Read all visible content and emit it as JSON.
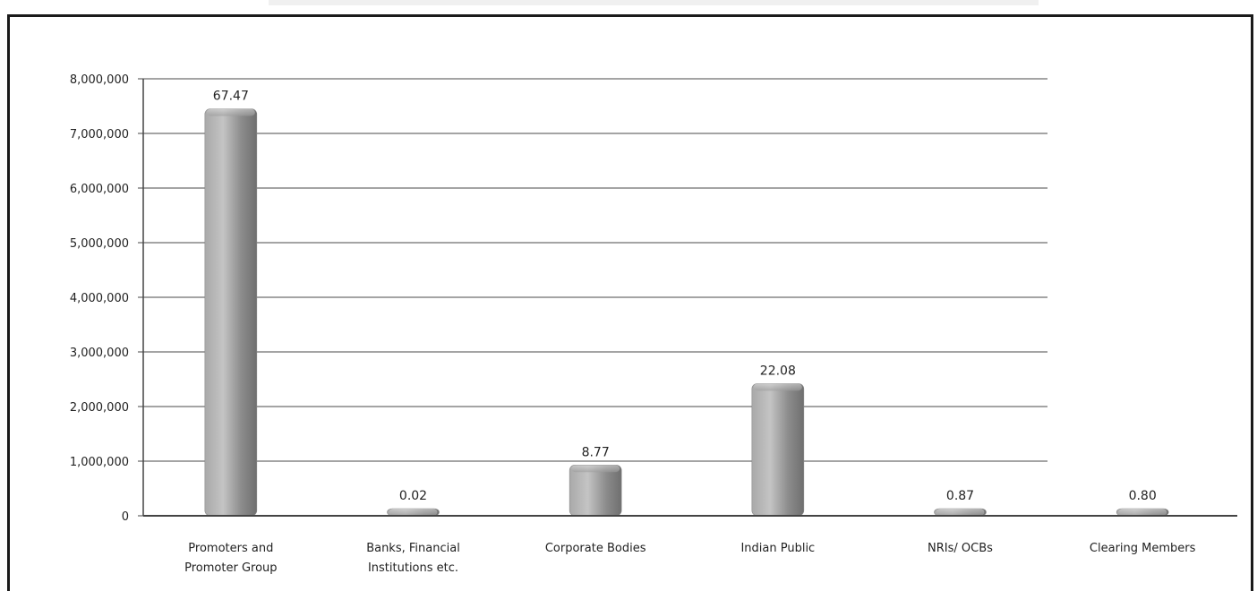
{
  "chart_data": {
    "type": "bar",
    "title": "",
    "xlabel": "",
    "ylabel": "",
    "ylim": [
      0,
      8000000
    ],
    "yticks": [
      0,
      1000000,
      2000000,
      3000000,
      4000000,
      5000000,
      6000000,
      7000000,
      8000000
    ],
    "ytick_labels": [
      "0",
      "1,000,000",
      "2,000,000",
      "3,000,000",
      "4,000,000",
      "5,000,000",
      "6,000,000",
      "7,000,000",
      "8,000,000"
    ],
    "grid": true,
    "legend": "none",
    "categories": [
      [
        "Promoters and",
        "Promoter Group"
      ],
      [
        "Banks, Financial",
        "Institutions etc."
      ],
      [
        "Corporate Bodies"
      ],
      [
        "Indian Public"
      ],
      [
        "NRIs/ OCBs"
      ],
      [
        "Clearing Members"
      ]
    ],
    "values": [
      7450000,
      20000,
      930000,
      2420000,
      90000,
      85000
    ],
    "data_labels": [
      "67.47",
      "0.02",
      "8.77",
      "22.08",
      "0.87",
      "0.80"
    ],
    "colors": {
      "bar_light": "#bdbdbd",
      "bar_dark": "#7a7a7a",
      "grid": "#6e6e6e",
      "axis": "#444444",
      "text": "#222222"
    }
  }
}
